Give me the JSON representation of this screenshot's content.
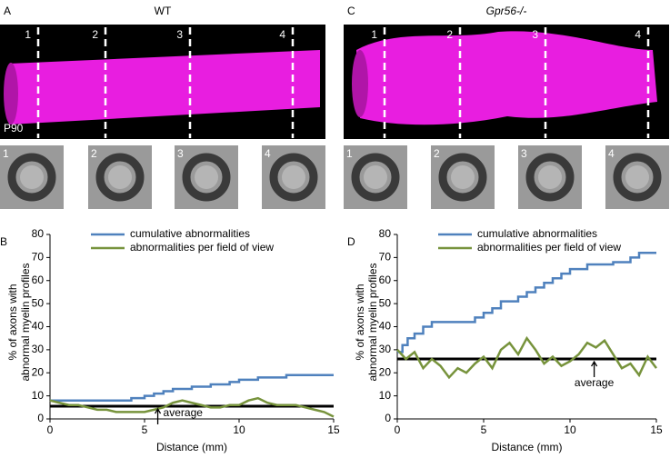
{
  "panels": [
    {
      "label": "A",
      "title": "WT",
      "age": "P90",
      "markers": [
        "1",
        "2",
        "3",
        "4"
      ],
      "thumbs": [
        "1",
        "2",
        "3",
        "4"
      ]
    },
    {
      "label": "C",
      "title": "Gpr56-/-",
      "markers": [
        "1",
        "2",
        "3",
        "4"
      ],
      "thumbs": [
        "1",
        "2",
        "3",
        "4"
      ]
    }
  ],
  "chart_data": [
    {
      "type": "line",
      "panel_label": "B",
      "xlabel": "Distance (mm)",
      "ylabel": [
        "% of axons with",
        "abnormal myelin profiles"
      ],
      "xlim": [
        0,
        15
      ],
      "xticks": [
        0,
        5,
        10,
        15
      ],
      "ylim": [
        0,
        80
      ],
      "yticks": [
        0,
        10,
        20,
        30,
        40,
        50,
        60,
        70,
        80
      ],
      "legend": "upper left",
      "series": [
        {
          "name": "cumulative abnormalities",
          "color": "#4f81bd",
          "x": [
            0,
            4.3,
            4.3,
            5,
            5,
            5.5,
            5.5,
            6,
            6,
            6.5,
            6.5,
            7.5,
            7.5,
            8.5,
            8.5,
            9.5,
            9.5,
            10,
            10,
            11,
            11,
            12.5,
            12.5,
            15
          ],
          "values": [
            8,
            8,
            9,
            9,
            10,
            10,
            11,
            11,
            12,
            12,
            13,
            13,
            14,
            14,
            15,
            15,
            16,
            16,
            17,
            17,
            18,
            18,
            19,
            19
          ]
        },
        {
          "name": "abnormalities per field of view",
          "color": "#77933c",
          "x": [
            0,
            0.5,
            1,
            1.5,
            2,
            2.5,
            3,
            3.5,
            4,
            4.5,
            5,
            5.5,
            6,
            6.5,
            7,
            7.5,
            8,
            8.5,
            9,
            9.5,
            10,
            10.5,
            11,
            11.5,
            12,
            12.5,
            13,
            13.5,
            14,
            14.5,
            15
          ],
          "values": [
            8,
            7,
            6,
            6,
            5,
            4,
            4,
            3,
            3,
            3,
            3,
            4,
            5,
            7,
            8,
            7,
            6,
            5,
            5,
            6,
            6,
            8,
            9,
            7,
            6,
            6,
            6,
            5,
            4,
            3,
            1
          ]
        }
      ],
      "average": {
        "value": 5.5,
        "label": "average"
      }
    },
    {
      "type": "line",
      "panel_label": "D",
      "xlabel": "Distance (mm)",
      "ylabel": [
        "% of axons with",
        "abnormal myelin profiles"
      ],
      "xlim": [
        0,
        15
      ],
      "xticks": [
        0,
        5,
        10,
        15
      ],
      "ylim": [
        0,
        80
      ],
      "yticks": [
        0,
        10,
        20,
        30,
        40,
        50,
        60,
        70,
        80
      ],
      "legend": "upper left",
      "series": [
        {
          "name": "cumulative abnormalities",
          "color": "#4f81bd",
          "x": [
            0,
            0.3,
            0.3,
            0.6,
            0.6,
            1,
            1,
            1.5,
            1.5,
            2,
            2,
            4.5,
            4.5,
            5,
            5,
            5.5,
            5.5,
            6,
            6,
            7,
            7,
            7.5,
            7.5,
            8,
            8,
            8.5,
            8.5,
            9,
            9,
            9.5,
            9.5,
            10,
            10,
            11,
            11,
            12.5,
            12.5,
            13.5,
            13.5,
            14,
            14,
            15
          ],
          "values": [
            29,
            29,
            32,
            32,
            35,
            35,
            37,
            37,
            40,
            40,
            42,
            42,
            44,
            44,
            46,
            46,
            48,
            48,
            51,
            51,
            53,
            53,
            55,
            55,
            57,
            57,
            59,
            59,
            61,
            61,
            63,
            63,
            65,
            65,
            67,
            67,
            68,
            68,
            70,
            70,
            72,
            72
          ]
        },
        {
          "name": "abnormalities per field of view",
          "color": "#77933c",
          "x": [
            0,
            0.5,
            1,
            1.5,
            2,
            2.5,
            3,
            3.5,
            4,
            4.5,
            5,
            5.5,
            6,
            6.5,
            7,
            7.5,
            8,
            8.5,
            9,
            9.5,
            10,
            10.5,
            11,
            11.5,
            12,
            12.5,
            13,
            13.5,
            14,
            14.5,
            15
          ],
          "values": [
            30,
            26,
            29,
            22,
            26,
            23,
            18,
            22,
            20,
            24,
            27,
            22,
            30,
            33,
            28,
            35,
            30,
            24,
            27,
            23,
            25,
            28,
            33,
            31,
            34,
            28,
            22,
            24,
            19,
            27,
            22
          ]
        }
      ],
      "average": {
        "value": 26,
        "label": "average"
      }
    }
  ]
}
